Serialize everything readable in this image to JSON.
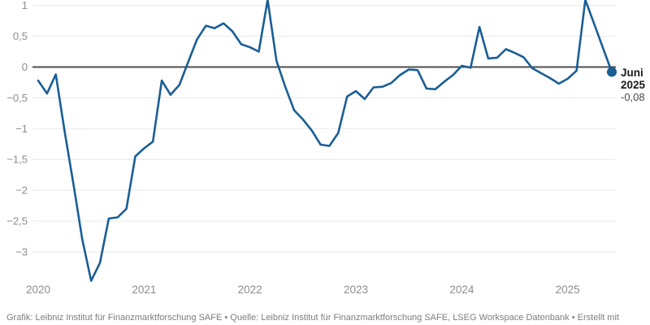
{
  "chart_data": {
    "type": "line",
    "title": "",
    "xlabel": "",
    "ylabel": "",
    "x": [
      "2020-01",
      "2020-02",
      "2020-03",
      "2020-04",
      "2020-05",
      "2020-06",
      "2020-07",
      "2020-08",
      "2020-09",
      "2020-10",
      "2020-11",
      "2020-12",
      "2021-01",
      "2021-02",
      "2021-03",
      "2021-04",
      "2021-05",
      "2021-06",
      "2021-07",
      "2021-08",
      "2021-09",
      "2021-10",
      "2021-11",
      "2021-12",
      "2022-01",
      "2022-02",
      "2022-03",
      "2022-04",
      "2022-05",
      "2022-06",
      "2022-07",
      "2022-08",
      "2022-09",
      "2022-10",
      "2022-11",
      "2022-12",
      "2023-01",
      "2023-02",
      "2023-03",
      "2023-04",
      "2023-05",
      "2023-06",
      "2023-07",
      "2023-08",
      "2023-09",
      "2023-10",
      "2023-11",
      "2023-12",
      "2024-01",
      "2024-02",
      "2024-03",
      "2024-04",
      "2024-05",
      "2024-06",
      "2024-07",
      "2024-08",
      "2024-09",
      "2024-10",
      "2024-11",
      "2024-12",
      "2025-01",
      "2025-02",
      "2025-03",
      "2025-04",
      "2025-05",
      "2025-06"
    ],
    "values": [
      -0.22,
      -0.43,
      -0.12,
      -1.05,
      -1.9,
      -2.8,
      -3.47,
      -3.18,
      -2.46,
      -2.44,
      -2.3,
      -1.45,
      -1.32,
      -1.21,
      -0.22,
      -0.45,
      -0.29,
      0.08,
      0.45,
      0.67,
      0.63,
      0.71,
      0.58,
      0.37,
      0.32,
      0.25,
      1.09,
      0.1,
      -0.32,
      -0.7,
      -0.85,
      -1.03,
      -1.26,
      -1.28,
      -1.07,
      -0.48,
      -0.39,
      -0.52,
      -0.33,
      -0.32,
      -0.26,
      -0.13,
      -0.04,
      -0.05,
      -0.35,
      -0.36,
      -0.24,
      -0.13,
      0.02,
      -0.01,
      0.65,
      0.14,
      0.15,
      0.29,
      0.23,
      0.16,
      -0.02,
      -0.1,
      -0.18,
      -0.27,
      -0.19,
      -0.06,
      1.09,
      0.7,
      0.31,
      -0.08
    ],
    "x_tick_labels": [
      "2020",
      "2021",
      "2022",
      "2023",
      "2024",
      "2025"
    ],
    "y_ticks": [
      1,
      0.5,
      0,
      -0.5,
      -1,
      -1.5,
      -2,
      -2.5,
      -3
    ],
    "y_tick_labels": [
      "1",
      "0,5",
      "0",
      "−0,5",
      "−1",
      "−1,5",
      "−2",
      "−2,5",
      "−3"
    ],
    "ylim": [
      -3.6,
      1.09
    ],
    "grid": true,
    "legend_position": "none",
    "line_color": "#1a5e96",
    "zero_line_color": "#4d4d4d",
    "grid_color": "#e9e9e9",
    "axis_label_color": "#8c8c8c",
    "annotation": {
      "line1": "Juni",
      "line2": "2025",
      "value_label": "-0,08",
      "value": -0.08,
      "text_color": "#1a1a1a",
      "value_color": "#4a4a4a"
    }
  },
  "footer": {
    "text": "Grafik: Leibniz Institut für Finanzmarktforschung SAFE • Quelle: Leibniz Institut für Finanzmarktforschung SAFE, LSEG Workspace Datenbank • Erstellt mit"
  }
}
